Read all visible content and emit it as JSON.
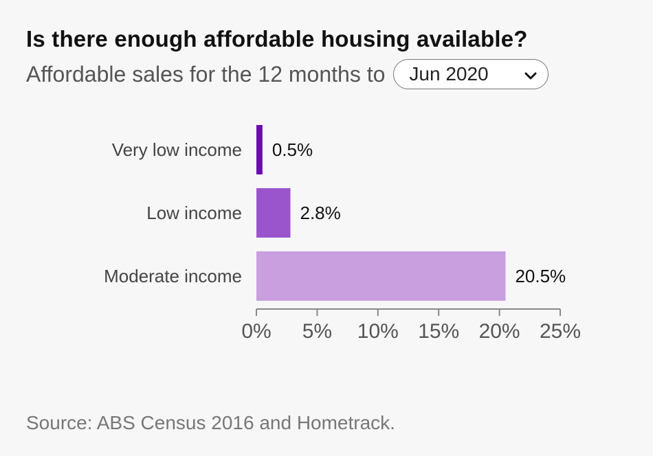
{
  "header": {
    "title": "Is there enough affordable housing available?",
    "subtitle": "Affordable sales for the 12 months to"
  },
  "period_select": {
    "selected": "Jun 2020"
  },
  "colors": {
    "very_low": "#6a0dad",
    "low": "#9b55cc",
    "moderate": "#c99fe0",
    "axis": "#888888"
  },
  "chart_data": {
    "type": "bar",
    "orientation": "horizontal",
    "title": "",
    "xlabel": "",
    "ylabel": "",
    "categories": [
      "Very low income",
      "Low income",
      "Moderate income"
    ],
    "values": [
      0.5,
      2.8,
      20.5
    ],
    "data_labels": [
      "0.5%",
      "2.8%",
      "20.5%"
    ],
    "xlim": [
      0,
      25
    ],
    "x_ticks": [
      0,
      5,
      10,
      15,
      20,
      25
    ],
    "x_tick_labels": [
      "0%",
      "5%",
      "10%",
      "15%",
      "20%",
      "25%"
    ],
    "grid": false,
    "legend": "none"
  },
  "footer": {
    "source": "Source: ABS Census 2016 and Hometrack."
  }
}
